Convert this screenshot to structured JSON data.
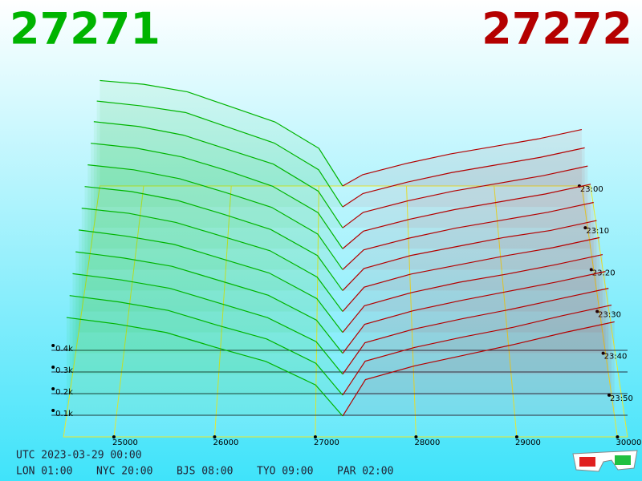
{
  "chart_data": {
    "type": "depth3d",
    "bid_price": "27271",
    "ask_price": "27272",
    "bid_color": "#00b400",
    "ask_color": "#b40000",
    "xlim": [
      24500,
      30100
    ],
    "xticks": [
      25000,
      26000,
      27000,
      28000,
      29000,
      30000
    ],
    "zticks": [
      {
        "value": 100,
        "label": "0.1k"
      },
      {
        "value": 200,
        "label": "0.2k"
      },
      {
        "value": 300,
        "label": "0.3k"
      },
      {
        "value": 400,
        "label": "0.4k"
      }
    ],
    "bid_x": [
      24500,
      25000,
      25500,
      26000,
      26500,
      27000,
      27271
    ],
    "ask_x": [
      27272,
      27500,
      28000,
      28500,
      29000,
      29500,
      30000
    ],
    "slices": [
      {
        "time": "23:00",
        "bids": [
          560,
          540,
          500,
          420,
          340,
          200,
          0
        ],
        "asks": [
          0,
          60,
          120,
          170,
          210,
          250,
          300
        ]
      },
      {
        "time": null,
        "bids": [
          555,
          530,
          495,
          415,
          335,
          195,
          0
        ],
        "asks": [
          0,
          70,
          130,
          180,
          220,
          260,
          310
        ]
      },
      {
        "time": "23:10",
        "bids": [
          550,
          525,
          480,
          405,
          330,
          190,
          0
        ],
        "asks": [
          0,
          80,
          140,
          190,
          230,
          270,
          320
        ]
      },
      {
        "time": null,
        "bids": [
          540,
          515,
          470,
          400,
          320,
          185,
          0
        ],
        "asks": [
          0,
          90,
          150,
          200,
          240,
          280,
          330
        ]
      },
      {
        "time": "23:20",
        "bids": [
          530,
          505,
          460,
          390,
          315,
          180,
          0
        ],
        "asks": [
          0,
          100,
          160,
          210,
          250,
          290,
          340
        ]
      },
      {
        "time": null,
        "bids": [
          520,
          495,
          450,
          380,
          305,
          175,
          0
        ],
        "asks": [
          0,
          110,
          175,
          220,
          265,
          300,
          350
        ]
      },
      {
        "time": "23:30",
        "bids": [
          510,
          485,
          440,
          370,
          300,
          170,
          0
        ],
        "asks": [
          0,
          120,
          185,
          230,
          275,
          315,
          365
        ]
      },
      {
        "time": null,
        "bids": [
          500,
          470,
          430,
          360,
          290,
          165,
          0
        ],
        "asks": [
          0,
          130,
          195,
          245,
          285,
          330,
          380
        ]
      },
      {
        "time": "23:40",
        "bids": [
          490,
          460,
          420,
          350,
          280,
          160,
          0
        ],
        "asks": [
          0,
          140,
          205,
          255,
          300,
          345,
          395
        ]
      },
      {
        "time": null,
        "bids": [
          480,
          450,
          410,
          340,
          270,
          155,
          0
        ],
        "asks": [
          0,
          150,
          215,
          265,
          310,
          360,
          410
        ]
      },
      {
        "time": "23:50",
        "bids": [
          470,
          440,
          400,
          330,
          265,
          150,
          0
        ],
        "asks": [
          0,
          160,
          225,
          275,
          320,
          375,
          425
        ]
      },
      {
        "time": null,
        "bids": [
          460,
          430,
          390,
          320,
          255,
          145,
          0
        ],
        "asks": [
          0,
          170,
          235,
          285,
          335,
          390,
          440
        ]
      }
    ],
    "clock": {
      "utc": "UTC 2023-03-29 00:00",
      "zones": [
        "LON 01:00",
        "NYC 20:00",
        "BJS 08:00",
        "TYO 09:00",
        "PAR 02:00"
      ]
    }
  }
}
